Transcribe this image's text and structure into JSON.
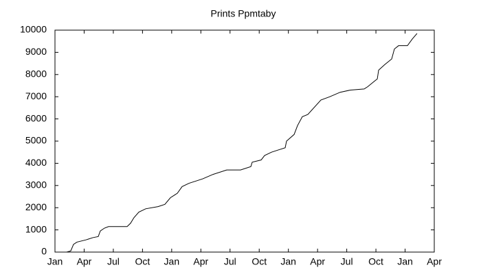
{
  "chart_data": {
    "type": "line",
    "title": "Prints Ppmtaby",
    "x": [
      1.2,
      1.62,
      1.91,
      2.26,
      3.18,
      3.89,
      4.45,
      4.66,
      5.09,
      5.51,
      7.42,
      7.77,
      8.12,
      8.62,
      9.33,
      10.6,
      11.3,
      11.87,
      12.58,
      13.07,
      13.78,
      14.49,
      15.19,
      16.25,
      17.66,
      19.08,
      20.14,
      20.28,
      21.2,
      21.55,
      22.26,
      22.96,
      23.67,
      23.81,
      24.59,
      24.94,
      25.43,
      26.0,
      27.34,
      28.26,
      29.32,
      30.38,
      31.79,
      32.15,
      32.85,
      33.14,
      33.28,
      33.91,
      34.62,
      34.9,
      35.33,
      36.24,
      36.74,
      37.23
    ],
    "series": [
      {
        "color": "#000000",
        "values": [
          0,
          50,
          350,
          450,
          550,
          650,
          700,
          950,
          1080,
          1150,
          1150,
          1300,
          1550,
          1800,
          1950,
          2050,
          2150,
          2450,
          2650,
          2950,
          3100,
          3200,
          3300,
          3500,
          3700,
          3700,
          3850,
          4050,
          4150,
          4350,
          4500,
          4600,
          4700,
          5000,
          5300,
          5700,
          6100,
          6200,
          6850,
          7000,
          7200,
          7300,
          7350,
          7450,
          7700,
          7800,
          8200,
          8450,
          8700,
          9150,
          9300,
          9300,
          9600,
          9850
        ]
      }
    ],
    "xlim": [
      0,
      39
    ],
    "xticks": [
      {
        "value": 0,
        "label": "Jan"
      },
      {
        "value": 3,
        "label": "Apr"
      },
      {
        "value": 6,
        "label": "Jul"
      },
      {
        "value": 9,
        "label": "Oct"
      },
      {
        "value": 12,
        "label": "Jan"
      },
      {
        "value": 15,
        "label": "Apr"
      },
      {
        "value": 18,
        "label": "Jul"
      },
      {
        "value": 21,
        "label": "Oct"
      },
      {
        "value": 24,
        "label": "Jan"
      },
      {
        "value": 27,
        "label": "Apr"
      },
      {
        "value": 30,
        "label": "Jul"
      },
      {
        "value": 33,
        "label": "Oct"
      },
      {
        "value": 36,
        "label": "Jan"
      },
      {
        "value": 39,
        "label": "Apr"
      }
    ],
    "ylim": [
      0,
      10000
    ],
    "yticks": [
      0,
      1000,
      2000,
      3000,
      4000,
      5000,
      6000,
      7000,
      8000,
      9000,
      10000
    ],
    "grid": false
  }
}
